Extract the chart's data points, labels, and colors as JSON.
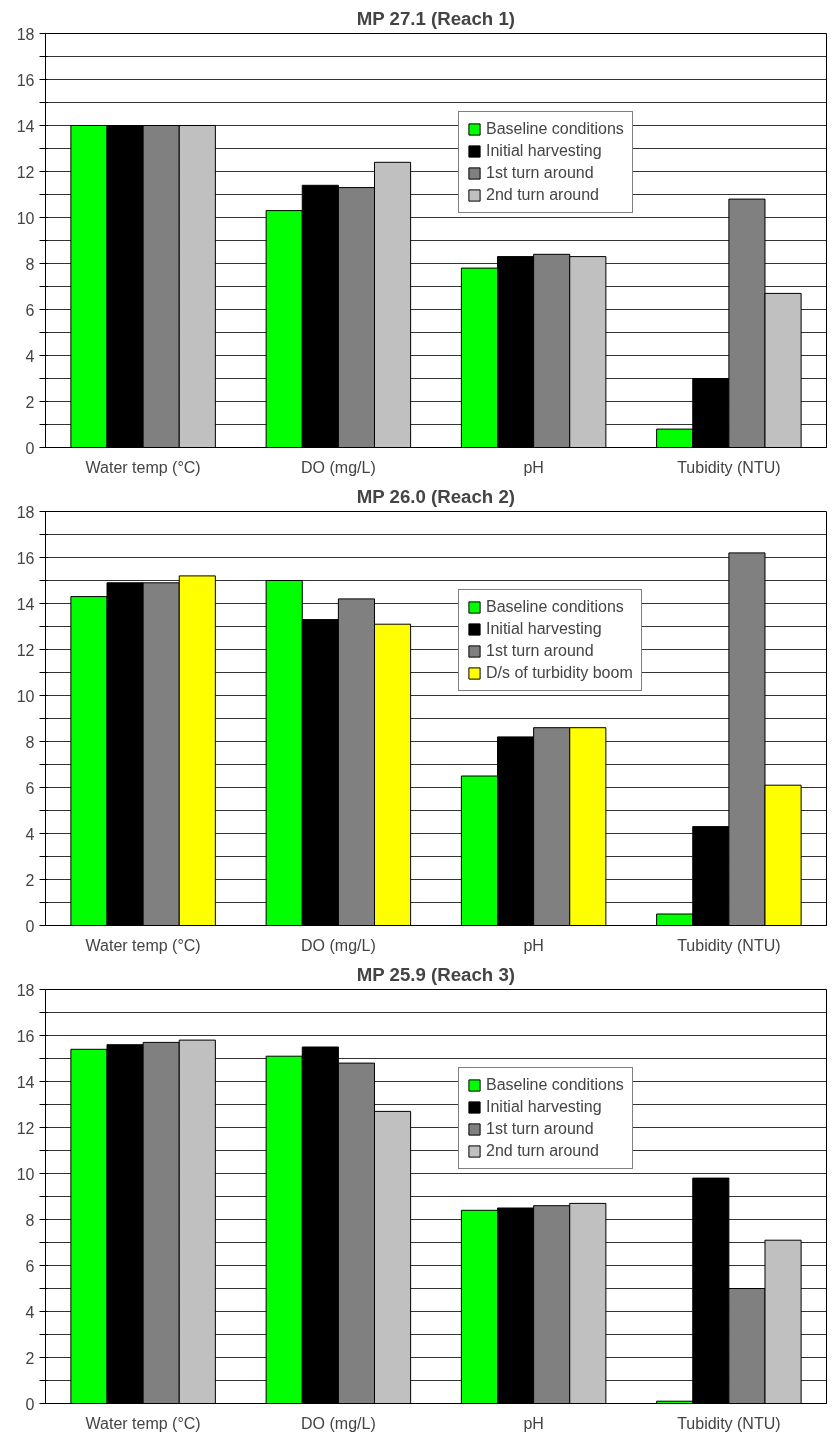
{
  "chart_data": [
    {
      "type": "bar",
      "title": "MP 27.1 (Reach 1)",
      "categories": [
        "Water temp (°C)",
        "DO (mg/L)",
        "pH",
        "Tubidity (NTU)"
      ],
      "ylim": [
        0,
        18
      ],
      "yticks": [
        0,
        {
          "value": 1,
          "label": null
        },
        2,
        {
          "value": 3,
          "label": null
        },
        4,
        {
          "value": 5,
          "label": null
        },
        6,
        {
          "value": 7,
          "label": null
        },
        8,
        {
          "value": 9,
          "label": null
        },
        10,
        {
          "value": 11,
          "label": null
        },
        12,
        {
          "value": 13,
          "label": null
        },
        14,
        {
          "value": 15,
          "label": null
        },
        16,
        {
          "value": 17,
          "label": null
        },
        18
      ],
      "grid": "y",
      "legend": "top right",
      "series": [
        {
          "name": "Baseline conditions",
          "color": "#00ff00",
          "values": [
            14.0,
            10.3,
            7.8,
            0.8
          ]
        },
        {
          "name": "Initial harvesting",
          "color": "#000000",
          "values": [
            14.0,
            11.4,
            8.3,
            3.0
          ]
        },
        {
          "name": "1st turn around",
          "color": "#808080",
          "values": [
            14.0,
            11.3,
            8.4,
            10.8
          ]
        },
        {
          "name": "2nd turn around",
          "color": "#c0c0c0",
          "values": [
            14.0,
            12.4,
            8.3,
            6.7
          ]
        }
      ]
    },
    {
      "type": "bar",
      "title": "MP 26.0 (Reach 2)",
      "categories": [
        "Water temp (°C)",
        "DO (mg/L)",
        "pH",
        "Tubidity (NTU)"
      ],
      "ylim": [
        0,
        18
      ],
      "yticks": [
        0,
        {
          "value": 1,
          "label": null
        },
        2,
        {
          "value": 3,
          "label": null
        },
        4,
        {
          "value": 5,
          "label": null
        },
        6,
        {
          "value": 7,
          "label": null
        },
        8,
        {
          "value": 9,
          "label": null
        },
        10,
        {
          "value": 11,
          "label": null
        },
        12,
        {
          "value": 13,
          "label": null
        },
        14,
        {
          "value": 15,
          "label": null
        },
        16,
        {
          "value": 17,
          "label": null
        },
        18
      ],
      "grid": "y",
      "legend": "top right",
      "series": [
        {
          "name": "Baseline conditions",
          "color": "#00ff00",
          "values": [
            14.3,
            15.0,
            6.5,
            0.5
          ]
        },
        {
          "name": "Initial harvesting",
          "color": "#000000",
          "values": [
            14.9,
            13.3,
            8.2,
            4.3
          ]
        },
        {
          "name": "1st turn around",
          "color": "#808080",
          "values": [
            14.9,
            14.2,
            8.6,
            16.2
          ]
        },
        {
          "name": "D/s of turbidity boom",
          "color": "#ffff00",
          "values": [
            15.2,
            13.1,
            8.6,
            6.1
          ]
        }
      ]
    },
    {
      "type": "bar",
      "title": "MP 25.9 (Reach 3)",
      "categories": [
        "Water temp (°C)",
        "DO (mg/L)",
        "pH",
        "Tubidity (NTU)"
      ],
      "ylim": [
        0,
        18
      ],
      "yticks": [
        0,
        {
          "value": 1,
          "label": null
        },
        2,
        {
          "value": 3,
          "label": null
        },
        4,
        {
          "value": 5,
          "label": null
        },
        6,
        {
          "value": 7,
          "label": null
        },
        8,
        {
          "value": 9,
          "label": null
        },
        10,
        {
          "value": 11,
          "label": null
        },
        12,
        {
          "value": 13,
          "label": null
        },
        14,
        {
          "value": 15,
          "label": null
        },
        16,
        {
          "value": 17,
          "label": null
        },
        18
      ],
      "grid": "y",
      "legend": "top right",
      "series": [
        {
          "name": "Baseline conditions",
          "color": "#00ff00",
          "values": [
            15.4,
            15.1,
            8.4,
            0.1
          ]
        },
        {
          "name": "Initial harvesting",
          "color": "#000000",
          "values": [
            15.6,
            15.5,
            8.5,
            9.8
          ]
        },
        {
          "name": "1st turn around",
          "color": "#808080",
          "values": [
            15.7,
            14.8,
            8.6,
            5.0
          ]
        },
        {
          "name": "2nd turn around",
          "color": "#c0c0c0",
          "values": [
            15.8,
            12.7,
            8.7,
            7.1
          ]
        }
      ]
    }
  ]
}
